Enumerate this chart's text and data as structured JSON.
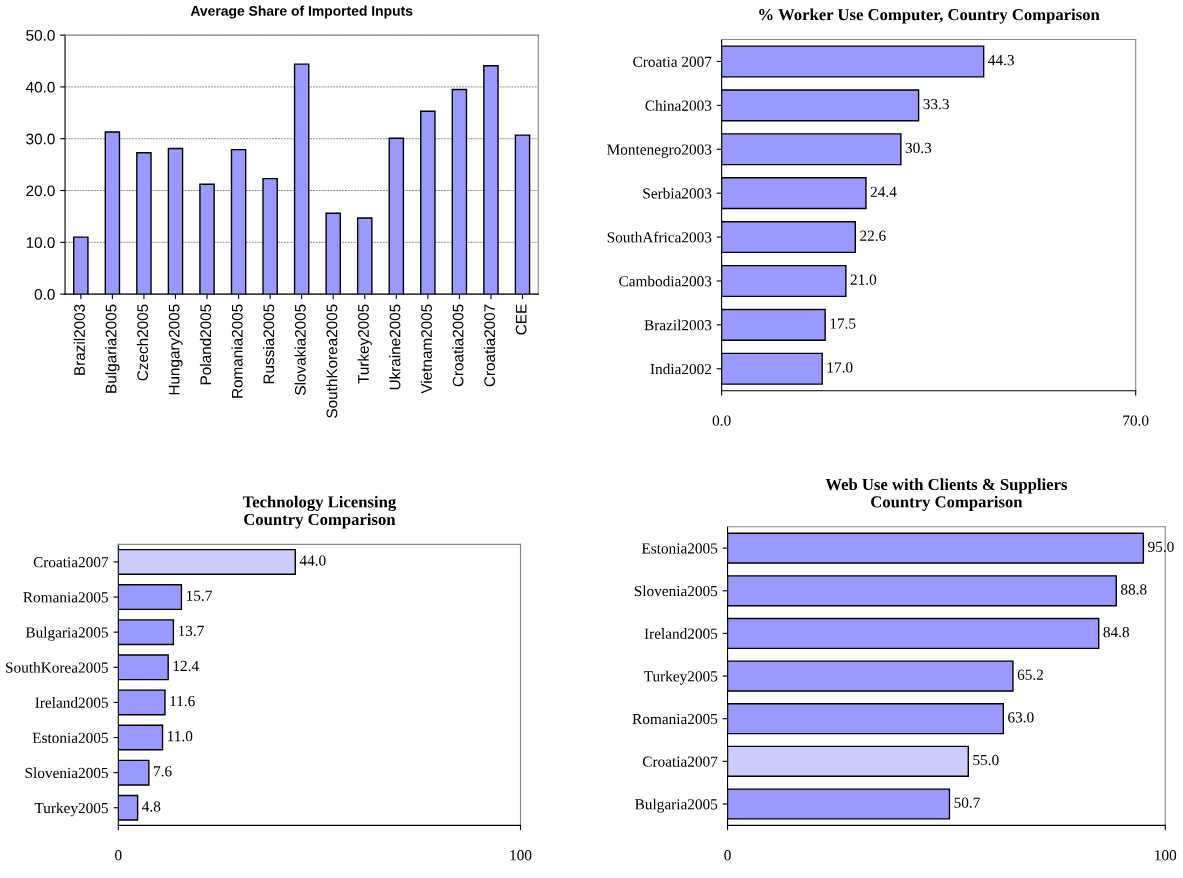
{
  "chart_data": [
    {
      "type": "bar",
      "title": "Average Share of Imported Inputs",
      "categories": [
        "Brazil2003",
        "Bulgaria2005",
        "Czech2005",
        "Hungary2005",
        "Poland2005",
        "Romania2005",
        "Russia2005",
        "Slovakia2005",
        "SouthKorea2005",
        "Turkey2005",
        "Ukraine2005",
        "Vietnam2005",
        "Croatia2005",
        "Croatia2007",
        "CEE"
      ],
      "values": [
        11.0,
        31.3,
        27.3,
        28.1,
        21.2,
        27.9,
        22.3,
        44.4,
        15.6,
        14.7,
        30.1,
        35.3,
        39.5,
        44.1,
        30.7
      ],
      "color": "#9999ff",
      "ylim": [
        0,
        50
      ],
      "yticks": [
        {
          "value": 0,
          "label": "0.0"
        },
        {
          "value": 10,
          "label": "10.0"
        },
        {
          "value": 20,
          "label": "20.0"
        },
        {
          "value": 30,
          "label": "30.0"
        },
        {
          "value": 40,
          "label": "40.0"
        },
        {
          "value": 50,
          "label": "50.0"
        }
      ],
      "grid": "y"
    },
    {
      "type": "bar",
      "orientation": "horizontal",
      "title": "% Worker Use Computer, Country Comparison",
      "categories": [
        "Croatia 2007",
        "China2003",
        "Montenegro2003",
        "Serbia2003",
        "SouthAfrica2003",
        "Cambodia2003",
        "Brazil2003",
        "India2002"
      ],
      "values": [
        44.3,
        33.3,
        30.3,
        24.4,
        22.6,
        21.0,
        17.5,
        17.0
      ],
      "color": "#9999ff",
      "value_labels": [
        "44.3",
        "33.3",
        "30.3",
        "24.4",
        "22.6",
        "21.0",
        "17.5",
        "17.0"
      ],
      "xlim": [
        0,
        70
      ],
      "xticks": [
        {
          "value": 0,
          "label": "0.0"
        },
        {
          "value": 70,
          "label": "70.0"
        }
      ]
    },
    {
      "type": "bar",
      "orientation": "horizontal",
      "title": "Technology Licensing\nCountry Comparison",
      "categories": [
        "Croatia2007",
        "Romania2005",
        "Bulgaria2005",
        "SouthKorea2005",
        "Ireland2005",
        "Estonia2005",
        "Slovenia2005",
        "Turkey2005"
      ],
      "values": [
        44.0,
        15.7,
        13.7,
        12.4,
        11.6,
        11.0,
        7.6,
        4.8
      ],
      "colors": [
        "#ccccff",
        "#9999ff",
        "#9999ff",
        "#9999ff",
        "#9999ff",
        "#9999ff",
        "#9999ff",
        "#9999ff"
      ],
      "value_labels": [
        "44.0",
        "15.7",
        "13.7",
        "12.4",
        "11.6",
        "11.0",
        "7.6",
        "4.8"
      ],
      "xlim": [
        0,
        100
      ],
      "xticks": [
        0,
        100
      ]
    },
    {
      "type": "bar",
      "orientation": "horizontal",
      "title": "Web Use with Clients & Suppliers\nCountry Comparison",
      "categories": [
        "Estonia2005",
        "Slovenia2005",
        "Ireland2005",
        "Turkey2005",
        "Romania2005",
        "Croatia2007",
        "Bulgaria2005"
      ],
      "values": [
        95.0,
        88.8,
        84.8,
        65.2,
        63.0,
        55.0,
        50.7
      ],
      "colors": [
        "#9999ff",
        "#9999ff",
        "#9999ff",
        "#9999ff",
        "#9999ff",
        "#ccccff",
        "#9999ff"
      ],
      "value_labels": [
        "95.0",
        "88.8",
        "84.8",
        "65.2",
        "63.0",
        "55.0",
        "50.7"
      ],
      "xlim": [
        0,
        100
      ],
      "xticks": [
        0,
        100
      ]
    }
  ]
}
